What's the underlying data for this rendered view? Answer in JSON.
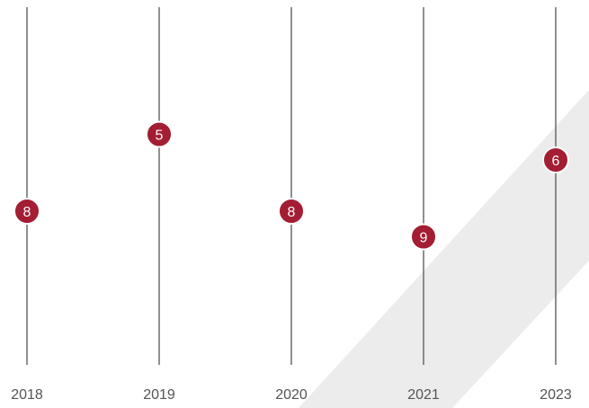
{
  "chart_data": {
    "type": "scatter",
    "categories": [
      "2018",
      "2019",
      "2020",
      "2021",
      "2023"
    ],
    "values": [
      8,
      5,
      8,
      9,
      6
    ],
    "colors": {
      "marker": "#a31d33",
      "marker_outline": "#ffffff",
      "axis_line": "#555555",
      "tick_text": "#555555",
      "background_band": "#ececec"
    },
    "grid": false,
    "legend": false
  }
}
